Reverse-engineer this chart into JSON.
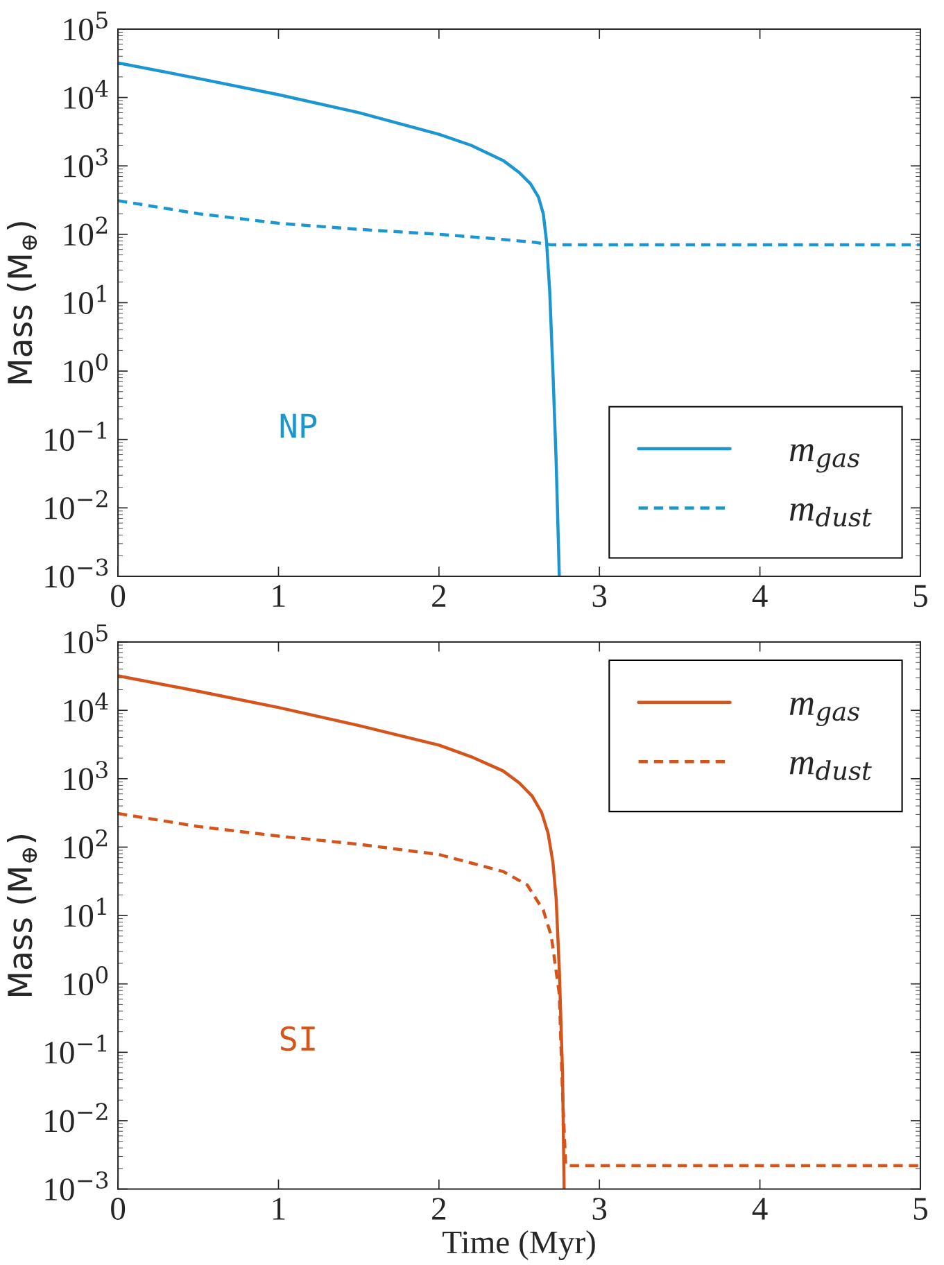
{
  "chart_data": [
    {
      "type": "line",
      "ylabel": "Mass (M$_{⊕}$)",
      "annotations": [
        "NP"
      ],
      "log": "y",
      "legend": "bottom right",
      "grid": false,
      "xlim": [
        0,
        5
      ],
      "xticks": [
        0,
        1,
        2,
        3,
        4,
        5
      ],
      "ylim": [
        0.001,
        100000
      ],
      "yticks": [
        {
          "value": 0.001,
          "label": "10$^{−3}$"
        },
        {
          "value": 0.01,
          "label": "10$^{−2}$"
        },
        {
          "value": 0.1,
          "label": "10$^{−1}$"
        },
        {
          "value": 1,
          "label": "10$^{0}$"
        },
        {
          "value": 10,
          "label": "10$^{1}$"
        },
        {
          "value": 100,
          "label": "10$^{2}$"
        },
        {
          "value": 1000,
          "label": "10$^{3}$"
        },
        {
          "value": 10000,
          "label": "10$^{4}$"
        },
        {
          "value": 100000,
          "label": "10$^{5}$"
        }
      ],
      "series": [
        {
          "name": "m$_{gas}$",
          "color": "#1b96d1",
          "line_style": "solid",
          "x": [
            0,
            0.5,
            1,
            1.5,
            2,
            2.2,
            2.4,
            2.5,
            2.57,
            2.62,
            2.65,
            2.67,
            2.69,
            2.71,
            2.73,
            2.75
          ],
          "values": [
            32000,
            19000,
            11000,
            6000,
            2900,
            2000,
            1200,
            800,
            550,
            350,
            200,
            80,
            15,
            1,
            0.05,
            0.001
          ]
        },
        {
          "name": "m$_{dust}$",
          "color": "#1b96d1",
          "line_style": "dashed",
          "x": [
            0,
            0.5,
            1,
            1.5,
            2,
            2.3,
            2.6,
            2.7,
            3,
            4,
            5
          ],
          "values": [
            310,
            200,
            145,
            118,
            100,
            88,
            76,
            70,
            70,
            70,
            70
          ]
        }
      ]
    },
    {
      "type": "line",
      "ylabel": "Mass (M$_{⊕}$)",
      "xlabel": "Time (Myr)",
      "annotations": [
        "SI"
      ],
      "log": "y",
      "legend": "top right",
      "grid": false,
      "xlim": [
        0,
        5
      ],
      "xticks": [
        0,
        1,
        2,
        3,
        4,
        5
      ],
      "ylim": [
        0.001,
        100000
      ],
      "yticks": [
        {
          "value": 0.001,
          "label": "10$^{−3}$"
        },
        {
          "value": 0.01,
          "label": "10$^{−2}$"
        },
        {
          "value": 0.1,
          "label": "10$^{−1}$"
        },
        {
          "value": 1,
          "label": "10$^{0}$"
        },
        {
          "value": 10,
          "label": "10$^{1}$"
        },
        {
          "value": 100,
          "label": "10$^{2}$"
        },
        {
          "value": 1000,
          "label": "10$^{3}$"
        },
        {
          "value": 10000,
          "label": "10$^{4}$"
        },
        {
          "value": 100000,
          "label": "10$^{5}$"
        }
      ],
      "series": [
        {
          "name": "m$_{gas}$",
          "color": "#d4541b",
          "line_style": "solid",
          "x": [
            0,
            0.5,
            1,
            1.5,
            2,
            2.2,
            2.4,
            2.5,
            2.58,
            2.64,
            2.68,
            2.71,
            2.73,
            2.75,
            2.77,
            2.78
          ],
          "values": [
            32000,
            19000,
            11000,
            6000,
            3100,
            2100,
            1300,
            870,
            560,
            320,
            160,
            60,
            18,
            1.6,
            0.05,
            0.001
          ]
        },
        {
          "name": "m$_{dust}$",
          "color": "#d4541b",
          "line_style": "dashed",
          "x": [
            0,
            0.5,
            1,
            1.5,
            2,
            2.4,
            2.55,
            2.65,
            2.7,
            2.75,
            2.77,
            2.79,
            2.8,
            3,
            4,
            5
          ],
          "values": [
            310,
            200,
            145,
            110,
            78,
            44,
            28,
            12,
            5,
            0.7,
            0.025,
            0.0022,
            0.0022,
            0.0022,
            0.0022,
            0.0022
          ]
        }
      ]
    }
  ]
}
